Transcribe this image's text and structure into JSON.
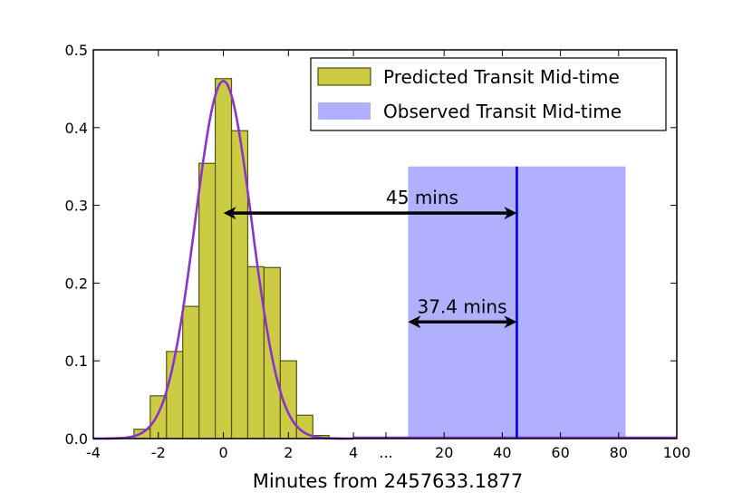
{
  "chart_data": {
    "type": "bar",
    "title": "",
    "xlabel": "Minutes from 2457633.1877",
    "ylabel": "",
    "ylim": [
      0,
      0.5
    ],
    "yticks": [
      "0.0",
      "0.1",
      "0.2",
      "0.3",
      "0.4",
      "0.5"
    ],
    "grid": false,
    "legend_position": "top-right",
    "xaxis_segments": [
      {
        "range": [
          -4,
          5
        ],
        "ticks": [
          "-4",
          "-2",
          "0",
          "2",
          "4"
        ]
      },
      {
        "break_label": "..."
      },
      {
        "range": [
          0,
          100
        ],
        "ticks": [
          "20",
          "40",
          "60",
          "80",
          "100"
        ]
      }
    ],
    "histogram": {
      "name": "Predicted Transit Mid-time",
      "color": "#cccc44",
      "edgecolor": "#555511",
      "bin_width": 0.5,
      "bins": [
        {
          "x0": -2.75,
          "value": 0.012
        },
        {
          "x0": -2.25,
          "value": 0.055
        },
        {
          "x0": -1.75,
          "value": 0.112
        },
        {
          "x0": -1.25,
          "value": 0.17
        },
        {
          "x0": -0.75,
          "value": 0.354
        },
        {
          "x0": -0.25,
          "value": 0.463
        },
        {
          "x0": 0.25,
          "value": 0.396
        },
        {
          "x0": 0.75,
          "value": 0.221
        },
        {
          "x0": 1.25,
          "value": 0.22
        },
        {
          "x0": 1.75,
          "value": 0.1
        },
        {
          "x0": 2.25,
          "value": 0.03
        },
        {
          "x0": 2.75,
          "value": 0.004
        }
      ]
    },
    "fit_curve": {
      "type": "gaussian",
      "mean": 0.0,
      "sigma": 0.87,
      "peak": 0.46,
      "x_range": [
        -4,
        4
      ],
      "color": "#8833cc"
    },
    "observed": {
      "name": "Observed Transit Mid-time",
      "center": 45,
      "band": [
        7.6,
        82.4
      ],
      "band_top": 0.35,
      "band_color": "#b0b0ff",
      "line_color": "#0000dd"
    },
    "annotations": [
      {
        "text": "45 mins",
        "arrow_from_predicted_x": 0,
        "arrow_to_observed_x": 45,
        "y": 0.29
      },
      {
        "text": "37.4 mins",
        "arrow_from_observed_x": 7.6,
        "arrow_to_observed_x": 45,
        "y": 0.15
      }
    ]
  }
}
